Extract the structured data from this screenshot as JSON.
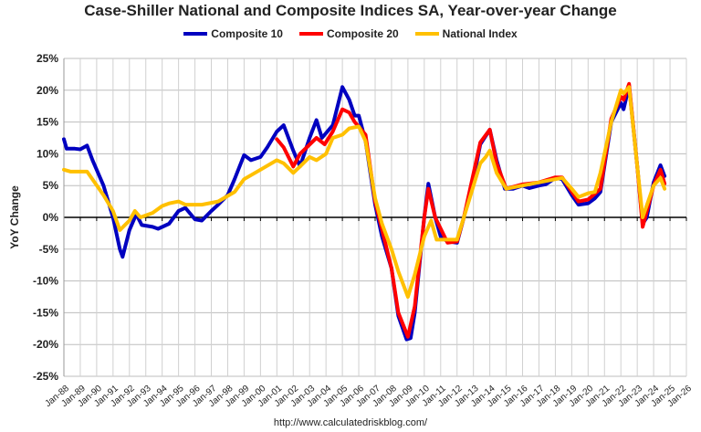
{
  "chart_data": {
    "type": "line",
    "title": "Case-Shiller National and Composite Indices SA, Year-over-year Change",
    "ylabel": "YoY Change",
    "credit": "http://www.calculatedriskblog.com/",
    "ylim": [
      -25,
      25
    ],
    "yticks": [
      "-25%",
      "-20%",
      "-15%",
      "-10%",
      "-5%",
      "0%",
      "5%",
      "10%",
      "15%",
      "20%",
      "25%"
    ],
    "xticks": [
      "Jan-88",
      "Jan-89",
      "Jan-90",
      "Jan-91",
      "Jan-92",
      "Jan-93",
      "Jan-94",
      "Jan-95",
      "Jan-96",
      "Jan-97",
      "Jan-98",
      "Jan-99",
      "Jan-00",
      "Jan-01",
      "Jan-02",
      "Jan-03",
      "Jan-04",
      "Jan-05",
      "Jan-06",
      "Jan-07",
      "Jan-08",
      "Jan-09",
      "Jan-10",
      "Jan-11",
      "Jan-12",
      "Jan-13",
      "Jan-14",
      "Jan-15",
      "Jan-16",
      "Jan-17",
      "Jan-18",
      "Jan-19",
      "Jan-20",
      "Jan-21",
      "Jan-22",
      "Jan-23",
      "Jan-24",
      "Jan-25",
      "Jan-26"
    ],
    "xlim": [
      "1988-01",
      "2026-01"
    ],
    "grid": true,
    "legend": "top",
    "series": [
      {
        "name": "Composite 10",
        "color": "#0000c0",
        "points": [
          [
            "1988-01",
            12.3
          ],
          [
            "1988-03",
            10.8
          ],
          [
            "1988-09",
            10.8
          ],
          [
            "1989-01",
            10.7
          ],
          [
            "1989-06",
            11.3
          ],
          [
            "1989-10",
            9
          ],
          [
            "1990-06",
            5
          ],
          [
            "1991-01",
            0
          ],
          [
            "1991-06",
            -5
          ],
          [
            "1991-08",
            -6.2
          ],
          [
            "1992-01",
            -2
          ],
          [
            "1992-06",
            0.5
          ],
          [
            "1992-10",
            -1.2
          ],
          [
            "1993-06",
            -1.5
          ],
          [
            "1993-10",
            -1.8
          ],
          [
            "1994-06",
            -1
          ],
          [
            "1995-01",
            1
          ],
          [
            "1995-06",
            1.5
          ],
          [
            "1996-01",
            -0.3
          ],
          [
            "1996-06",
            -0.5
          ],
          [
            "1997-01",
            1
          ],
          [
            "1997-06",
            2
          ],
          [
            "1998-01",
            3.5
          ],
          [
            "1998-06",
            6
          ],
          [
            "1999-01",
            9.8
          ],
          [
            "1999-06",
            9
          ],
          [
            "2000-01",
            9.5
          ],
          [
            "2000-06",
            11
          ],
          [
            "2001-01",
            13.5
          ],
          [
            "2001-06",
            14.5
          ],
          [
            "2002-01",
            10.5
          ],
          [
            "2002-06",
            8
          ],
          [
            "2003-01",
            12.5
          ],
          [
            "2003-06",
            15.3
          ],
          [
            "2003-10",
            12.5
          ],
          [
            "2004-06",
            14.5
          ],
          [
            "2005-01",
            20.5
          ],
          [
            "2005-06",
            18.5
          ],
          [
            "2005-10",
            16
          ],
          [
            "2006-01",
            16
          ],
          [
            "2006-06",
            12
          ],
          [
            "2007-01",
            2
          ],
          [
            "2007-06",
            -3
          ],
          [
            "2008-01",
            -8
          ],
          [
            "2008-06",
            -15.5
          ],
          [
            "2008-12",
            -19.2
          ],
          [
            "2009-03",
            -19
          ],
          [
            "2009-06",
            -15
          ],
          [
            "2010-01",
            0
          ],
          [
            "2010-04",
            5.3
          ],
          [
            "2010-09",
            0
          ],
          [
            "2011-01",
            -3
          ],
          [
            "2011-06",
            -3.8
          ],
          [
            "2012-01",
            -4
          ],
          [
            "2012-06",
            0
          ],
          [
            "2013-01",
            6
          ],
          [
            "2013-06",
            11.5
          ],
          [
            "2014-01",
            13.8
          ],
          [
            "2014-06",
            9
          ],
          [
            "2014-12",
            4.5
          ],
          [
            "2015-06",
            4.5
          ],
          [
            "2016-01",
            5
          ],
          [
            "2016-06",
            4.6
          ],
          [
            "2017-01",
            5
          ],
          [
            "2017-06",
            5.2
          ],
          [
            "2018-01",
            6.2
          ],
          [
            "2018-06",
            6
          ],
          [
            "2019-01",
            3.5
          ],
          [
            "2019-06",
            2
          ],
          [
            "2020-01",
            2.2
          ],
          [
            "2020-06",
            3
          ],
          [
            "2020-10",
            4
          ],
          [
            "2021-06",
            15
          ],
          [
            "2022-01",
            18
          ],
          [
            "2022-03",
            17
          ],
          [
            "2022-07",
            20.7
          ],
          [
            "2023-01",
            8
          ],
          [
            "2023-05",
            -1
          ],
          [
            "2023-08",
            0
          ],
          [
            "2024-01",
            5.5
          ],
          [
            "2024-06",
            8.2
          ],
          [
            "2024-09",
            6.5
          ]
        ]
      },
      {
        "name": "Composite 20",
        "color": "#ff0000",
        "points": [
          [
            "2001-01",
            12.3
          ],
          [
            "2001-06",
            11
          ],
          [
            "2002-01",
            8
          ],
          [
            "2002-06",
            10
          ],
          [
            "2003-06",
            12.5
          ],
          [
            "2003-12",
            11.5
          ],
          [
            "2004-06",
            13.5
          ],
          [
            "2005-01",
            17
          ],
          [
            "2005-06",
            16.5
          ],
          [
            "2005-10",
            15
          ],
          [
            "2006-06",
            13
          ],
          [
            "2007-01",
            2.5
          ],
          [
            "2008-01",
            -8
          ],
          [
            "2008-06",
            -15
          ],
          [
            "2009-01",
            -18.8
          ],
          [
            "2009-06",
            -14
          ],
          [
            "2010-01",
            0
          ],
          [
            "2010-04",
            4.5
          ],
          [
            "2010-09",
            0
          ],
          [
            "2011-06",
            -4
          ],
          [
            "2012-01",
            -3.8
          ],
          [
            "2012-06",
            0
          ],
          [
            "2013-06",
            11.8
          ],
          [
            "2014-01",
            13.8
          ],
          [
            "2014-06",
            8.5
          ],
          [
            "2015-01",
            4.5
          ],
          [
            "2016-01",
            5.2
          ],
          [
            "2017-01",
            5.5
          ],
          [
            "2018-01",
            6.3
          ],
          [
            "2018-06",
            6.3
          ],
          [
            "2019-06",
            2.5
          ],
          [
            "2020-01",
            2.8
          ],
          [
            "2020-10",
            4.5
          ],
          [
            "2021-06",
            15.5
          ],
          [
            "2022-01",
            19
          ],
          [
            "2022-03",
            18.5
          ],
          [
            "2022-07",
            21
          ],
          [
            "2023-01",
            8
          ],
          [
            "2023-05",
            -1.5
          ],
          [
            "2024-01",
            5
          ],
          [
            "2024-06",
            7.5
          ],
          [
            "2024-09",
            5.3
          ]
        ]
      },
      {
        "name": "National Index",
        "color": "#ffc000",
        "points": [
          [
            "1988-01",
            7.5
          ],
          [
            "1988-06",
            7.2
          ],
          [
            "1989-06",
            7.2
          ],
          [
            "1990-06",
            3.5
          ],
          [
            "1991-01",
            1
          ],
          [
            "1991-06",
            -2
          ],
          [
            "1992-01",
            -0.5
          ],
          [
            "1992-05",
            1
          ],
          [
            "1992-09",
            0
          ],
          [
            "1993-06",
            0.7
          ],
          [
            "1994-01",
            1.8
          ],
          [
            "1994-06",
            2.2
          ],
          [
            "1995-01",
            2.5
          ],
          [
            "1995-06",
            2
          ],
          [
            "1996-06",
            2
          ],
          [
            "1997-06",
            2.5
          ],
          [
            "1998-06",
            4
          ],
          [
            "1999-01",
            6
          ],
          [
            "2000-01",
            7.5
          ],
          [
            "2001-01",
            9
          ],
          [
            "2001-06",
            8.5
          ],
          [
            "2002-01",
            7
          ],
          [
            "2002-06",
            8
          ],
          [
            "2003-01",
            9.5
          ],
          [
            "2003-06",
            9
          ],
          [
            "2004-01",
            10
          ],
          [
            "2004-06",
            12.5
          ],
          [
            "2005-01",
            13
          ],
          [
            "2005-06",
            14
          ],
          [
            "2006-01",
            14.3
          ],
          [
            "2006-06",
            12
          ],
          [
            "2007-01",
            3
          ],
          [
            "2007-06",
            -1
          ],
          [
            "2008-01",
            -5
          ],
          [
            "2008-06",
            -8.5
          ],
          [
            "2009-01",
            -12.5
          ],
          [
            "2009-06",
            -9
          ],
          [
            "2010-01",
            -3
          ],
          [
            "2010-06",
            -0.5
          ],
          [
            "2010-10",
            -3.5
          ],
          [
            "2011-06",
            -3.5
          ],
          [
            "2012-01",
            -3.5
          ],
          [
            "2012-06",
            0
          ],
          [
            "2013-06",
            8.5
          ],
          [
            "2013-10",
            9.5
          ],
          [
            "2014-01",
            10.5
          ],
          [
            "2014-06",
            7
          ],
          [
            "2015-01",
            4.5
          ],
          [
            "2016-01",
            5
          ],
          [
            "2017-01",
            5.5
          ],
          [
            "2018-01",
            6
          ],
          [
            "2018-06",
            6.2
          ],
          [
            "2019-01",
            4.5
          ],
          [
            "2019-06",
            3.2
          ],
          [
            "2020-01",
            3.8
          ],
          [
            "2020-06",
            4
          ],
          [
            "2020-10",
            7
          ],
          [
            "2021-06",
            15
          ],
          [
            "2022-01",
            20
          ],
          [
            "2022-03",
            19.5
          ],
          [
            "2022-07",
            20.5
          ],
          [
            "2023-01",
            8
          ],
          [
            "2023-05",
            0
          ],
          [
            "2024-01",
            5
          ],
          [
            "2024-06",
            6.2
          ],
          [
            "2024-09",
            4.5
          ]
        ]
      }
    ]
  }
}
